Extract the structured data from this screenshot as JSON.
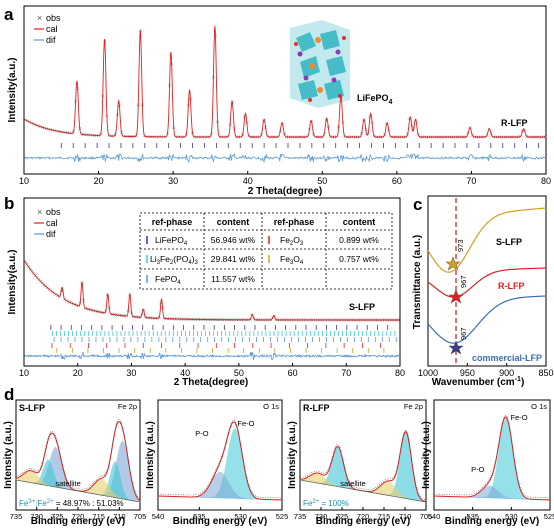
{
  "panels": {
    "a": {
      "label": "a",
      "xlabel": "2 Theta(degree)",
      "ylabel": "Intensity(a.u.)",
      "xticks": [
        "10",
        "20",
        "30",
        "40",
        "50",
        "60",
        "70",
        "80"
      ],
      "legend": [
        "obs",
        "cal",
        "dif"
      ],
      "annotation_phase": "LiFePO",
      "annotation_sub": "4",
      "sample": "R-LFP"
    },
    "b": {
      "label": "b",
      "xlabel": "2 Theta(degree)",
      "ylabel": "Intensity(a.u.)",
      "xticks": [
        "10",
        "20",
        "30",
        "40",
        "50",
        "60",
        "70",
        "80"
      ],
      "legend": [
        "obs",
        "cal",
        "dif"
      ],
      "sample": "S-LFP",
      "table_headers": [
        "ref-phase",
        "content",
        "ref-phase",
        "content"
      ],
      "table_rows": [
        {
          "phase1": "LiFePO",
          "sub1": "4",
          "content1": "56.946 wt%",
          "phase2": "Fe",
          "sub2": "2",
          "phase2b": "O",
          "sub2b": "3",
          "content2": "0.899 wt%"
        },
        {
          "phase1": "Li",
          "sub1": "3",
          "phase1b": "Fe",
          "sub1b": "2",
          "phase1c": "(PO",
          "sub1c": "4",
          "phase1d": ")",
          "sub1d": "3",
          "content1": "29.841 wt%",
          "phase2": "Fe",
          "sub2": "3",
          "phase2b": "O",
          "sub2b": "4",
          "content2": "0.757 wt%"
        },
        {
          "phase1": "FePO",
          "sub1": "4",
          "content1": "11.557 wt%"
        }
      ]
    },
    "c": {
      "label": "c",
      "xlabel": "Wavenumber (cm",
      "xlabel_sup": "-1",
      "xlabel_end": ")",
      "ylabel": "Transmittance (a.u.)",
      "xticks": [
        "1000",
        "950",
        "900",
        "850"
      ],
      "curves": [
        "S-LFP",
        "R-LFP",
        "commercial-LFP"
      ],
      "markers": [
        "973",
        "967",
        "967"
      ]
    },
    "d": {
      "label": "d",
      "sub": [
        {
          "sample": "S-LFP",
          "edge": "Fe 2p",
          "xlabel": "Binding energy (eV)",
          "ylabel": "Intensity (a.u.)",
          "xticks": [
            "735",
            "730",
            "725",
            "720",
            "715",
            "710",
            "705"
          ],
          "satellite": "satellite",
          "ratio": "Fe",
          "ratio_sup1": "3+",
          "ratio_mid": ":Fe",
          "ratio_sup2": "2+",
          "ratio_val": " = 48.97% : 51.03%"
        },
        {
          "sample": "",
          "edge": "O 1s",
          "xlabel": "Binding energy (eV)",
          "ylabel": "Intensity (a.u.)",
          "xticks": [
            "540",
            "535",
            "530",
            "525"
          ],
          "peaks": [
            "P-O",
            "Fe-O"
          ]
        },
        {
          "sample": "R-LFP",
          "edge": "Fe 2p",
          "xlabel": "Binding energy (eV)",
          "ylabel": "Intensity (a.u.)",
          "xticks": [
            "735",
            "730",
            "725",
            "720",
            "715",
            "710",
            "705"
          ],
          "satellite": "satellite",
          "ratio": "Fe",
          "ratio_sup1": "2+",
          "ratio_val": " = 100%"
        },
        {
          "sample": "",
          "edge": "O 1s",
          "xlabel": "Binding energy (eV)",
          "ylabel": "Intensity (a.u.)",
          "xticks": [
            "540",
            "535",
            "530",
            "525"
          ],
          "peaks": [
            "P-O",
            "Fe-O"
          ]
        }
      ]
    }
  },
  "colors": {
    "obs": "#555555",
    "cal": "#e02020",
    "dif": "#5b9bd5",
    "gold": "#d4a017",
    "red": "#e02020",
    "blue": "#3b6eb5",
    "cyan": "#40c8d8",
    "yellow": "#e8d070",
    "navy": "#3a3a8a"
  },
  "chart_data": [
    {
      "type": "line",
      "panel": "a",
      "xlim": [
        10,
        80
      ],
      "peaks_2theta": [
        17.1,
        20.8,
        22.7,
        25.6,
        29.7,
        32.2,
        35.6,
        37.9,
        39.7,
        42.2,
        44.6,
        48.5,
        50.6,
        52.5,
        55.6,
        56.5,
        58.7,
        61.8,
        62.5,
        69.8,
        72.4,
        77.0
      ],
      "peak_rel_intensity": [
        0.45,
        0.82,
        0.3,
        0.9,
        0.72,
        0.4,
        0.94,
        0.3,
        0.2,
        0.15,
        0.12,
        0.14,
        0.16,
        0.35,
        0.15,
        0.2,
        0.12,
        0.17,
        0.15,
        0.08,
        0.07,
        0.07
      ]
    },
    {
      "type": "line",
      "panel": "b",
      "xlim": [
        10,
        80
      ],
      "peaks_2theta": [
        17.1,
        20.8,
        25.6,
        29.7,
        32.2,
        35.6,
        52.5,
        56.5
      ],
      "peak_rel_intensity": [
        0.2,
        0.45,
        0.35,
        0.4,
        0.15,
        0.35,
        0.1,
        0.08
      ]
    },
    {
      "type": "line",
      "panel": "c",
      "xlim": [
        1000,
        850
      ],
      "series": [
        {
          "name": "S-LFP",
          "min_at": 973
        },
        {
          "name": "R-LFP",
          "min_at": 967
        },
        {
          "name": "commercial-LFP",
          "min_at": 967
        }
      ]
    }
  ]
}
